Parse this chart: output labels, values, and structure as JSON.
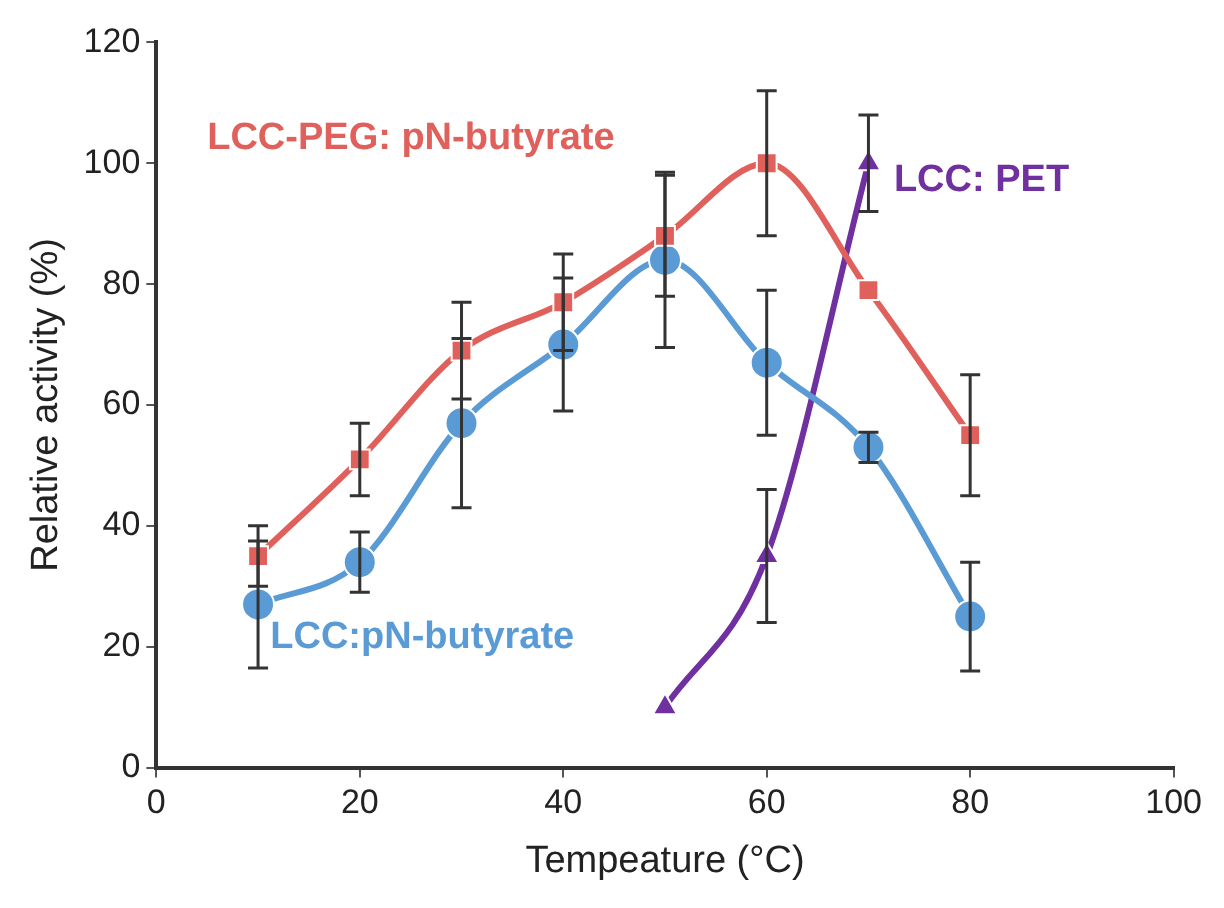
{
  "chart_data": {
    "type": "line",
    "xlabel": "Tempeature (°C)",
    "ylabel": "Relative activity (%)",
    "xlim": [
      0,
      100
    ],
    "xticks": [
      0,
      20,
      40,
      60,
      80,
      100
    ],
    "ylim": [
      0,
      120
    ],
    "yticks": [
      0,
      20,
      40,
      60,
      80,
      100,
      120
    ],
    "grid": false,
    "legend": false,
    "line_style": "solid",
    "series": [
      {
        "name": "LCC-PEG: pN-butyrate",
        "color": "#e0605c",
        "marker": "square",
        "x": [
          10,
          20,
          30,
          40,
          50,
          60,
          70,
          80
        ],
        "values": [
          35,
          51,
          69,
          77,
          88,
          100,
          79,
          55
        ],
        "errors": [
          5,
          6,
          8,
          8,
          10,
          12,
          null,
          10
        ]
      },
      {
        "name": "LCC:pN-butyrate",
        "color": "#5b9bd5",
        "marker": "circle",
        "x": [
          10,
          20,
          30,
          40,
          50,
          60,
          70,
          80
        ],
        "values": [
          27,
          34,
          57,
          70,
          84,
          67,
          53,
          25
        ],
        "errors": [
          10.5,
          5,
          14,
          11,
          14.5,
          12,
          2.5,
          9
        ]
      },
      {
        "name": "LCC: PET",
        "color": "#7030a0",
        "marker": "triangle",
        "x": [
          50,
          60,
          70
        ],
        "values": [
          10,
          35,
          100
        ],
        "errors": [
          null,
          11,
          8
        ]
      }
    ]
  }
}
